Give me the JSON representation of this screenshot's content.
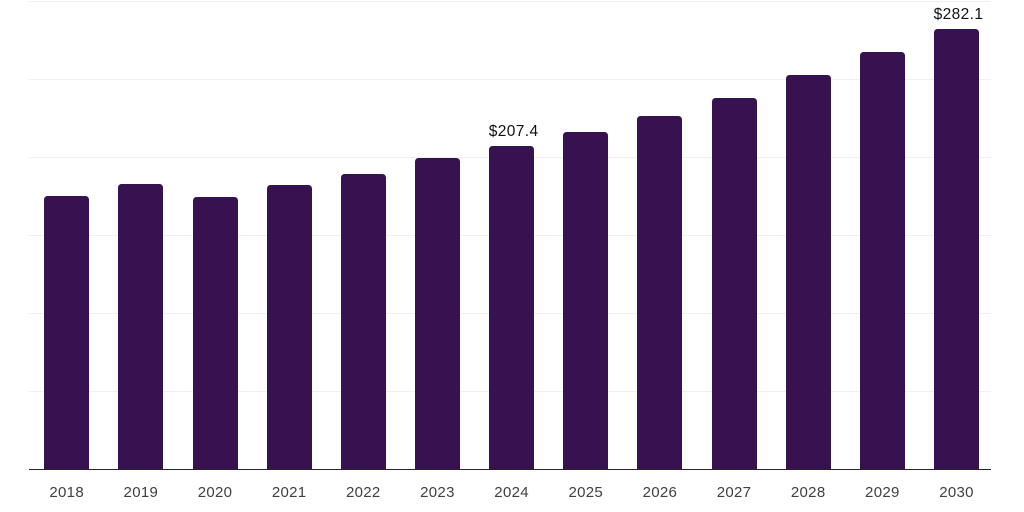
{
  "chart_data": {
    "type": "bar",
    "title": "",
    "xlabel": "",
    "ylabel": "",
    "categories": [
      "2018",
      "2019",
      "2020",
      "2021",
      "2022",
      "2023",
      "2024",
      "2025",
      "2026",
      "2027",
      "2028",
      "2029",
      "2030"
    ],
    "values": [
      175.3,
      182.6,
      174.7,
      182.3,
      189.2,
      199.3,
      207.4,
      216.3,
      226.6,
      237.9,
      252.4,
      267.1,
      282.1
    ],
    "data_labels": {
      "2024": "$207.4",
      "2030": "$282.1"
    },
    "ylim": [
      0,
      300
    ],
    "grid_step": 50,
    "grid": true,
    "legend": "none",
    "colors": {
      "bar": "#381150",
      "axis_line": "#262626",
      "gridline": "#f0f0f0",
      "tick_label": "#404040",
      "data_label": "#111111",
      "background": "#ffffff"
    }
  }
}
